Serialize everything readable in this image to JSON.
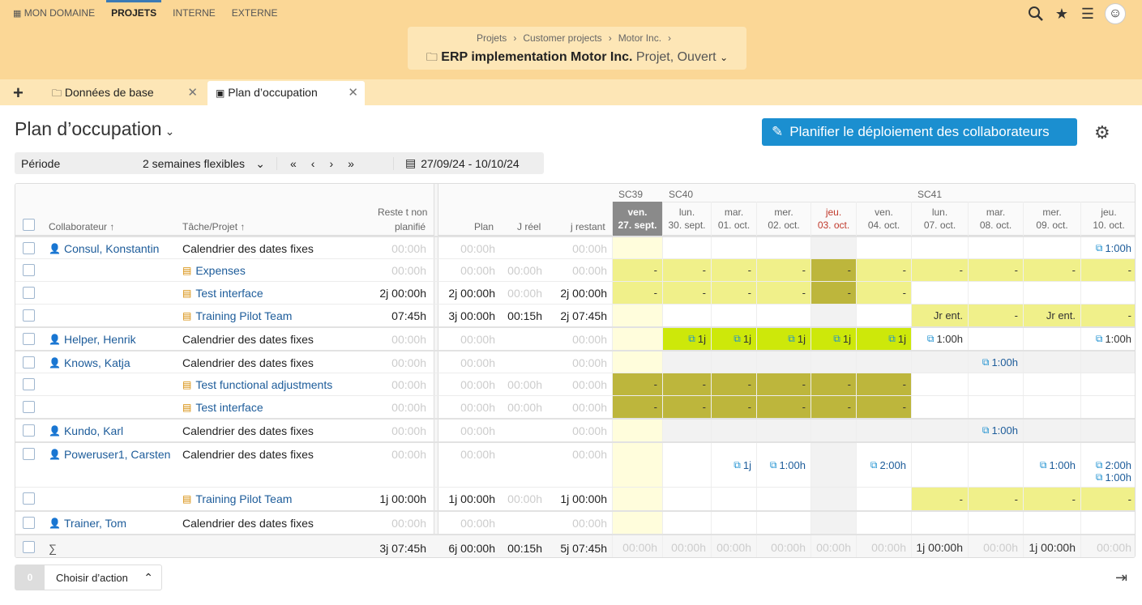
{
  "topnav": {
    "items": [
      "MON DOMAINE",
      "PROJETS",
      "INTERNE",
      "EXTERNE"
    ],
    "active": "PROJETS"
  },
  "icons": {
    "search": "search-icon",
    "star": "star-icon",
    "menu": "menu-icon",
    "avatar": "avatar"
  },
  "breadcrumb": {
    "items": [
      "Projets",
      "Customer projects",
      "Motor Inc."
    ],
    "sep": "›"
  },
  "project": {
    "title": "ERP implementation Motor Inc.",
    "subtitle": "Projet, Ouvert"
  },
  "tabs": [
    {
      "label": "Données de base"
    },
    {
      "label": "Plan d’occupation"
    }
  ],
  "page": {
    "title": "Plan d’occupation",
    "plan_button": "Planifier le déploiement des collaborateurs"
  },
  "filter": {
    "label": "Période",
    "value": "2 semaines flexibles",
    "range": "27/09/24 - 10/10/24",
    "nav": [
      "«",
      "‹",
      "›",
      "»"
    ]
  },
  "columns": {
    "collab": "Collaborateur ↑",
    "task": "Tâche/Projet ↑",
    "rest1": "Reste t non",
    "rest2": "planifié",
    "plan": "Plan",
    "reel": "J réel",
    "restant": "j restant"
  },
  "weeks": [
    "SC39",
    "SC40",
    "SC41"
  ],
  "days": [
    {
      "d": "ven.",
      "n": "27. sept."
    },
    {
      "d": "lun.",
      "n": "30. sept."
    },
    {
      "d": "mar.",
      "n": "01. oct."
    },
    {
      "d": "mer.",
      "n": "02. oct."
    },
    {
      "d": "jeu.",
      "n": "03. oct."
    },
    {
      "d": "ven.",
      "n": "04. oct."
    },
    {
      "d": "lun.",
      "n": "07. oct."
    },
    {
      "d": "mar.",
      "n": "08. oct."
    },
    {
      "d": "mer.",
      "n": "09. oct."
    },
    {
      "d": "jeu.",
      "n": "10. oct."
    }
  ],
  "rows": [
    {
      "collab": "Consul, Konstantin",
      "task": "Calendrier des dates fixes",
      "rest": "00:00h",
      "plan": "00:00h",
      "reel": "",
      "restant": "00:00h",
      "cells": [
        "",
        "",
        "",
        "",
        "",
        "",
        "",
        "",
        "",
        "1:00h"
      ]
    },
    {
      "collab": "",
      "task": "Expenses",
      "rest": "00:00h",
      "plan": "00:00h",
      "reel": "00:00h",
      "restant": "00:00h",
      "cells": [
        "-",
        "-",
        "-",
        "-",
        "-",
        "-",
        "-",
        "-",
        "-",
        "-"
      ]
    },
    {
      "collab": "",
      "task": "Test interface",
      "rest": "2j 00:00h",
      "plan": "2j 00:00h",
      "reel": "00:00h",
      "restant": "2j 00:00h",
      "cells": [
        "-",
        "-",
        "-",
        "-",
        "-",
        "-",
        "",
        "",
        "",
        ""
      ]
    },
    {
      "collab": "",
      "task": "Training Pilot Team",
      "rest": "07:45h",
      "plan": "3j 00:00h",
      "reel": "00:15h",
      "restant": "2j 07:45h",
      "cells": [
        "",
        "",
        "",
        "",
        "",
        "",
        "Jr ent.",
        "-",
        "Jr ent.",
        "-"
      ]
    },
    {
      "collab": "Helper, Henrik",
      "task": "Calendrier des dates fixes",
      "rest": "00:00h",
      "plan": "00:00h",
      "reel": "",
      "restant": "00:00h",
      "cells": [
        "",
        "1j",
        "1j",
        "1j",
        "1j",
        "1j",
        "1:00h",
        "",
        "",
        "1:00h"
      ]
    },
    {
      "collab": "Knows, Katja",
      "task": "Calendrier des dates fixes",
      "rest": "00:00h",
      "plan": "00:00h",
      "reel": "",
      "restant": "00:00h",
      "cells": [
        "",
        "",
        "",
        "",
        "",
        "",
        "",
        "1:00h",
        "",
        ""
      ]
    },
    {
      "collab": "",
      "task": "Test functional adjustments",
      "rest": "00:00h",
      "plan": "00:00h",
      "reel": "00:00h",
      "restant": "00:00h",
      "cells": [
        "-",
        "-",
        "-",
        "-",
        "-",
        "-",
        "",
        "",
        "",
        ""
      ]
    },
    {
      "collab": "",
      "task": "Test interface",
      "rest": "00:00h",
      "plan": "00:00h",
      "reel": "00:00h",
      "restant": "00:00h",
      "cells": [
        "-",
        "-",
        "-",
        "-",
        "-",
        "-",
        "",
        "",
        "",
        ""
      ]
    },
    {
      "collab": "Kundo, Karl",
      "task": "Calendrier des dates fixes",
      "rest": "00:00h",
      "plan": "00:00h",
      "reel": "",
      "restant": "00:00h",
      "cells": [
        "",
        "",
        "",
        "",
        "",
        "",
        "",
        "1:00h",
        "",
        ""
      ]
    },
    {
      "collab": "Poweruser1, Carsten",
      "task": "Calendrier des dates fixes",
      "rest": "00:00h",
      "plan": "00:00h",
      "reel": "",
      "restant": "00:00h",
      "cells": [
        "",
        "",
        "1j",
        "1:00h",
        "",
        "2:00h",
        "",
        "",
        "1:00h",
        "2:00h"
      ],
      "extra": "1:00h"
    },
    {
      "collab": "",
      "task": "Training Pilot Team",
      "rest": "1j 00:00h",
      "plan": "1j 00:00h",
      "reel": "00:00h",
      "restant": "1j 00:00h",
      "cells": [
        "",
        "",
        "",
        "",
        "",
        "",
        "-",
        "-",
        "-",
        "-"
      ]
    },
    {
      "collab": "Trainer, Tom",
      "task": "Calendrier des dates fixes",
      "rest": "00:00h",
      "plan": "00:00h",
      "reel": "",
      "restant": "00:00h",
      "cells": [
        "",
        "",
        "",
        "",
        "",
        "",
        "",
        "",
        "",
        ""
      ]
    }
  ],
  "totals": {
    "label": "∑",
    "rest": "3j 07:45h",
    "plan": "6j 00:00h",
    "reel": "00:15h",
    "restant": "5j 07:45h",
    "cells": [
      "00:00h",
      "00:00h",
      "00:00h",
      "00:00h",
      "00:00h",
      "00:00h",
      "1j 00:00h",
      "00:00h",
      "1j 00:00h",
      "00:00h"
    ]
  },
  "footer": {
    "count": "0",
    "action": "Choisir d’action"
  }
}
